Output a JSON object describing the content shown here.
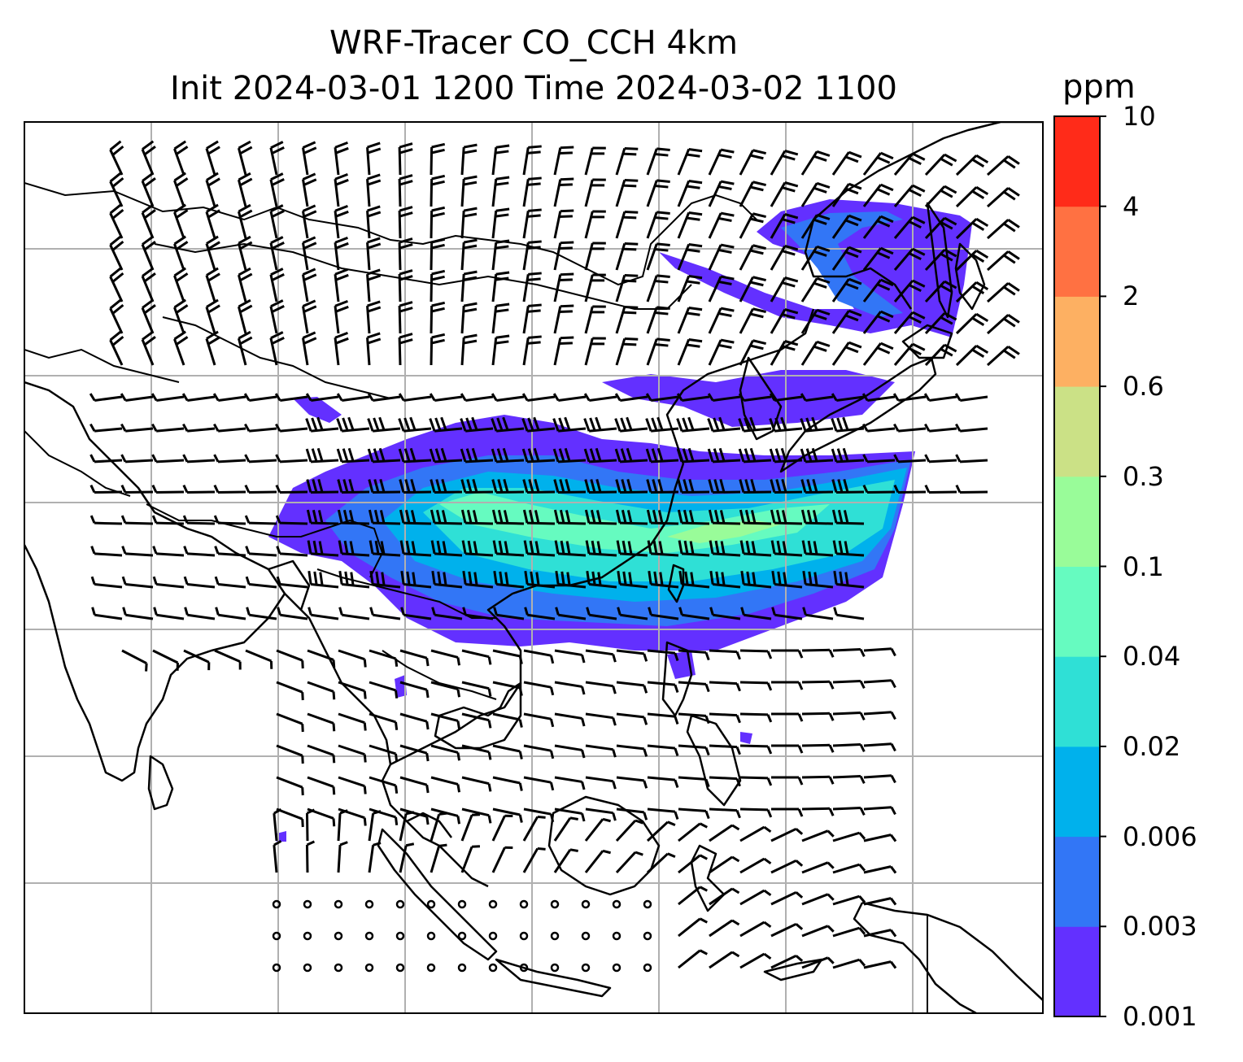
{
  "title": {
    "line1": "WRF-Tracer CO_CCH 4km",
    "line2": "Init 2024-03-01 1200 Time 2024-03-02 1100"
  },
  "colorbar": {
    "unit": "ppm",
    "levels": [
      "0.001",
      "0.003",
      "0.006",
      "0.02",
      "0.04",
      "0.1",
      "0.3",
      "0.6",
      "2",
      "4",
      "10"
    ],
    "colors": [
      "#6330ff",
      "#3276f6",
      "#00b1ec",
      "#2fe0d6",
      "#66fbc0",
      "#99fc99",
      "#cbe186",
      "#fdb062",
      "#ff7142",
      "#ff2b19"
    ]
  },
  "map": {
    "field": "CO_CCH tracer concentration with wind barbs",
    "gridlines": true,
    "coastline_color": "#000000",
    "gridline_color": "#b0b0b0"
  }
}
